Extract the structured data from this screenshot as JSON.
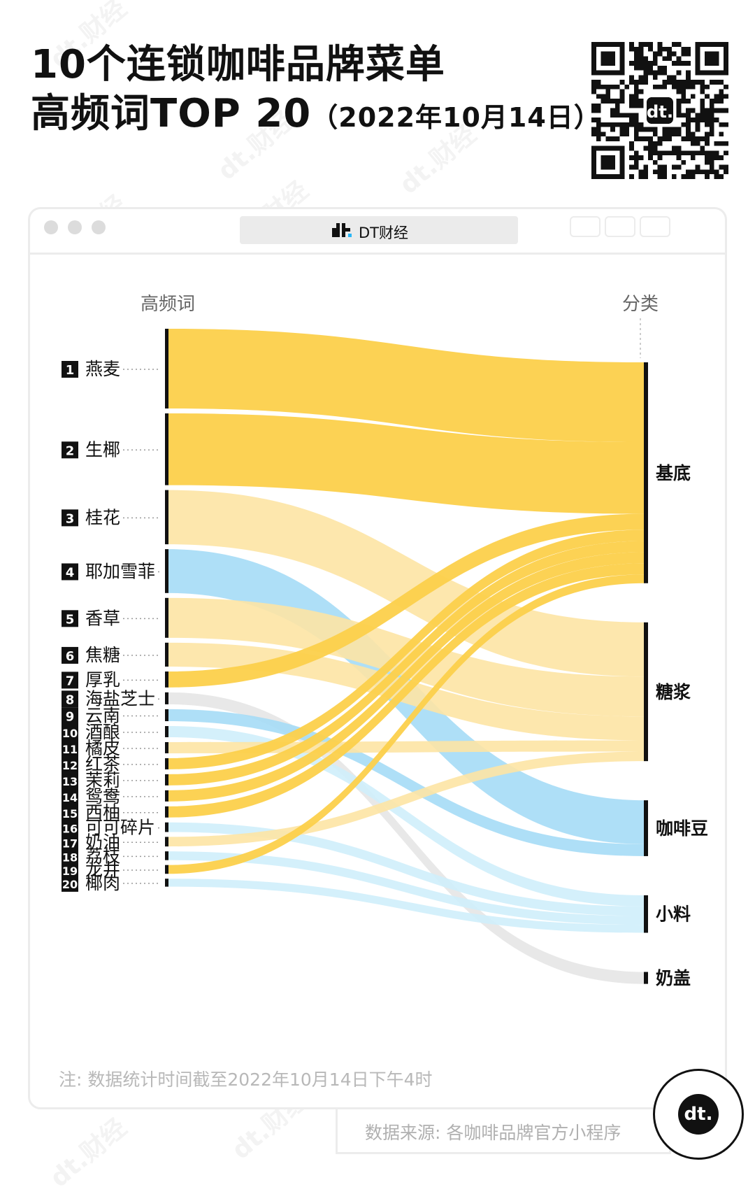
{
  "header": {
    "title_line1": "10个连锁咖啡品牌菜单",
    "title_line2": "高频词TOP 20",
    "title_date": "（2022年10月14日）"
  },
  "browser": {
    "brand": "DT财经"
  },
  "chart_data": {
    "type": "sankey",
    "left_header": "高频词",
    "right_header": "分类",
    "nodes_left": [
      {
        "rank": "1",
        "word": "燕麦"
      },
      {
        "rank": "2",
        "word": "生椰"
      },
      {
        "rank": "3",
        "word": "桂花"
      },
      {
        "rank": "4",
        "word": "耶加雪菲"
      },
      {
        "rank": "5",
        "word": "香草"
      },
      {
        "rank": "6",
        "word": "焦糖"
      },
      {
        "rank": "7",
        "word": "厚乳"
      },
      {
        "rank": "8",
        "word": "海盐芝士"
      },
      {
        "rank": "9",
        "word": "云南"
      },
      {
        "rank": "10",
        "word": "酒酿"
      },
      {
        "rank": "11",
        "word": "橘皮"
      },
      {
        "rank": "12",
        "word": "红茶"
      },
      {
        "rank": "13",
        "word": "茉莉"
      },
      {
        "rank": "14",
        "word": "鸳鸯"
      },
      {
        "rank": "15",
        "word": "西柚"
      },
      {
        "rank": "16",
        "word": "可可碎片"
      },
      {
        "rank": "17",
        "word": "奶油"
      },
      {
        "rank": "18",
        "word": "荔枝"
      },
      {
        "rank": "19",
        "word": "龙井"
      },
      {
        "rank": "20",
        "word": "椰肉"
      }
    ],
    "nodes_right": [
      "基底",
      "糖浆",
      "咖啡豆",
      "小料",
      "奶盖"
    ],
    "links": [
      {
        "source": "燕麦",
        "target": "基底",
        "value": 100
      },
      {
        "source": "生椰",
        "target": "基底",
        "value": 90
      },
      {
        "source": "桂花",
        "target": "糖浆",
        "value": 68
      },
      {
        "source": "耶加雪菲",
        "target": "咖啡豆",
        "value": 55
      },
      {
        "source": "香草",
        "target": "糖浆",
        "value": 50
      },
      {
        "source": "焦糖",
        "target": "糖浆",
        "value": 30
      },
      {
        "source": "厚乳",
        "target": "基底",
        "value": 20
      },
      {
        "source": "海盐芝士",
        "target": "奶盖",
        "value": 15
      },
      {
        "source": "云南",
        "target": "咖啡豆",
        "value": 15
      },
      {
        "source": "酒酿",
        "target": "小料",
        "value": 14
      },
      {
        "source": "橘皮",
        "target": "糖浆",
        "value": 14
      },
      {
        "source": "红茶",
        "target": "基底",
        "value": 14
      },
      {
        "source": "茉莉",
        "target": "基底",
        "value": 14
      },
      {
        "source": "鸳鸯",
        "target": "基底",
        "value": 14
      },
      {
        "source": "西柚",
        "target": "基底",
        "value": 14
      },
      {
        "source": "可可碎片",
        "target": "小料",
        "value": 12
      },
      {
        "source": "奶油",
        "target": "糖浆",
        "value": 12
      },
      {
        "source": "荔枝",
        "target": "小料",
        "value": 11
      },
      {
        "source": "龙井",
        "target": "基底",
        "value": 11
      },
      {
        "source": "椰肉",
        "target": "小料",
        "value": 10
      }
    ],
    "category_colors": {
      "基底": "#fcd04b",
      "糖浆": "#fde4a4",
      "咖啡豆": "#a5dcf6",
      "小料": "#cfeefb",
      "奶盖": "#e6e6e6"
    }
  },
  "footer": {
    "note": "注: 数据统计时间截至2022年10月14日下午4时",
    "source": "数据来源: 各咖啡品牌官方小程序",
    "badge": "dt."
  }
}
